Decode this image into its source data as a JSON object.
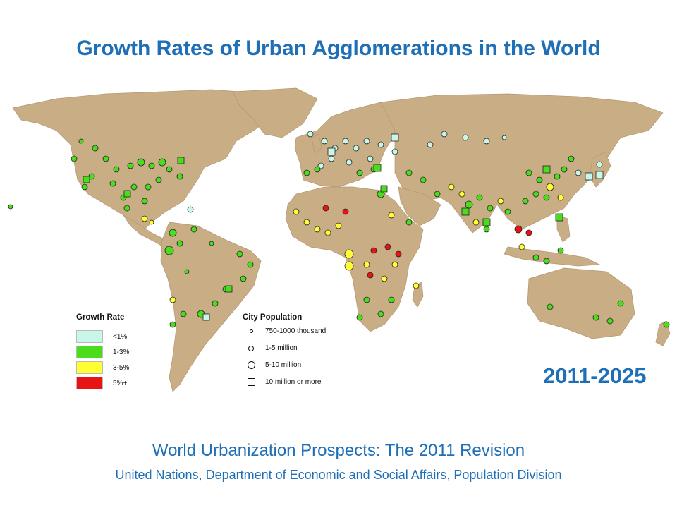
{
  "title": "Growth Rates of Urban Agglomerations in the World",
  "period": "2011-2025",
  "source": {
    "title": "World Urbanization Prospects: The 2011 Revision",
    "subtitle": "United Nations, Department of Economic and Social Affairs, Population Division"
  },
  "legend": {
    "growth_heading": "Growth Rate",
    "growth_items": [
      {
        "label": "<1%",
        "color": "#c8f7ea"
      },
      {
        "label": "1-3%",
        "color": "#4bdc1e"
      },
      {
        "label": "3-5%",
        "color": "#ffff33"
      },
      {
        "label": "5%+",
        "color": "#e81414"
      }
    ],
    "population_heading": "City Population",
    "population_items": [
      {
        "label": "750-1000 thousand",
        "symbol": "small-circle"
      },
      {
        "label": "1-5 million",
        "symbol": "medium-circle"
      },
      {
        "label": "5-10 million",
        "symbol": "large-circle"
      },
      {
        "label": "10 million or more",
        "symbol": "square"
      }
    ]
  },
  "colors": {
    "land": "#c8ad85",
    "title_blue": "#1f6fb7"
  }
}
